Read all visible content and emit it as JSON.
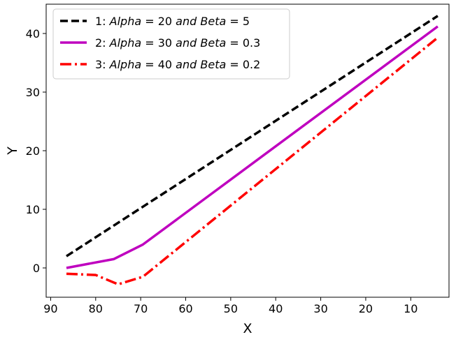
{
  "chart_data": {
    "type": "line",
    "title": "",
    "xlabel": "X",
    "ylabel": "Y",
    "xlim": [
      91,
      1.5
    ],
    "ylim": [
      -5,
      45
    ],
    "x_inverted": true,
    "xticks": [
      90,
      80,
      70,
      60,
      50,
      40,
      30,
      20,
      10
    ],
    "yticks": [
      0,
      10,
      20,
      30,
      40
    ],
    "grid": false,
    "legend_position": "top-left",
    "series": [
      {
        "name": "1: Alpha = 20 and Beta = 5",
        "legend_parts": [
          "1:",
          "Alpha",
          "= 20",
          "and",
          "Beta",
          "= 5"
        ],
        "color": "#000000",
        "style": "dashed",
        "x": [
          86.5,
          4
        ],
        "y": [
          2,
          43
        ]
      },
      {
        "name": "2: Alpha = 30 and Beta = 0.3",
        "legend_parts": [
          "2:",
          "Alpha",
          "= 30",
          "and",
          "Beta",
          "= 0.3"
        ],
        "color": "#bf00bf",
        "style": "solid",
        "x": [
          86.5,
          76,
          69.5,
          4
        ],
        "y": [
          0,
          1.5,
          4,
          41.2
        ]
      },
      {
        "name": "3: Alpha = 40 and Beta = 0.2",
        "legend_parts": [
          "3:",
          "Alpha",
          "= 40",
          "and",
          "Beta",
          "= 0.2"
        ],
        "color": "#ff0000",
        "style": "dashdot",
        "x": [
          86.5,
          80,
          75,
          69.5,
          4
        ],
        "y": [
          -1,
          -1.2,
          -2.8,
          -1.5,
          39.3
        ]
      }
    ]
  }
}
